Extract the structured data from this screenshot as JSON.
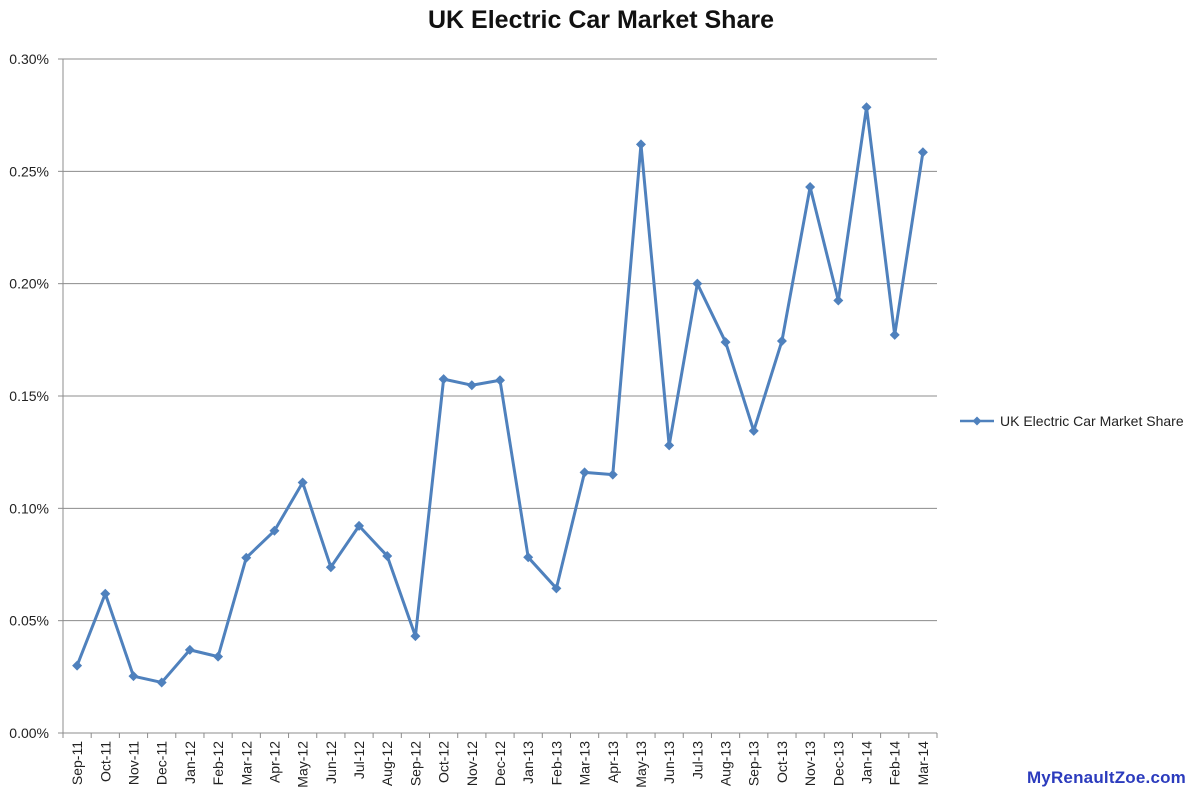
{
  "chart_data": {
    "type": "line",
    "title": "UK Electric Car Market Share",
    "xlabel": "",
    "ylabel": "",
    "categories": [
      "Sep-11",
      "Oct-11",
      "Nov-11",
      "Dec-11",
      "Jan-12",
      "Feb-12",
      "Mar-12",
      "Apr-12",
      "May-12",
      "Jun-12",
      "Jul-12",
      "Aug-12",
      "Sep-12",
      "Oct-12",
      "Nov-12",
      "Dec-12",
      "Jan-13",
      "Feb-13",
      "Mar-13",
      "Apr-13",
      "May-13",
      "Jun-13",
      "Jul-13",
      "Aug-13",
      "Sep-13",
      "Oct-13",
      "Nov-13",
      "Dec-13",
      "Jan-14",
      "Feb-14",
      "Mar-14"
    ],
    "series": [
      {
        "name": "UK Electric Car Market Share",
        "color": "#4f81bd",
        "values": [
          0.03,
          0.062,
          0.0253,
          0.0225,
          0.037,
          0.034,
          0.078,
          0.09,
          0.1115,
          0.0738,
          0.0922,
          0.0788,
          0.0431,
          0.1575,
          0.1548,
          0.157,
          0.0782,
          0.0644,
          0.116,
          0.115,
          0.262,
          0.128,
          0.2,
          0.174,
          0.1345,
          0.1745,
          0.243,
          0.1925,
          0.2785,
          0.1772,
          0.2585
        ]
      }
    ],
    "ylim": [
      0,
      0.3
    ],
    "yticks": [
      "0.00%",
      "0.05%",
      "0.10%",
      "0.15%",
      "0.20%",
      "0.25%",
      "0.30%"
    ],
    "grid": true,
    "legend_position": "right"
  },
  "watermark": "MyRenaultZoe.com"
}
